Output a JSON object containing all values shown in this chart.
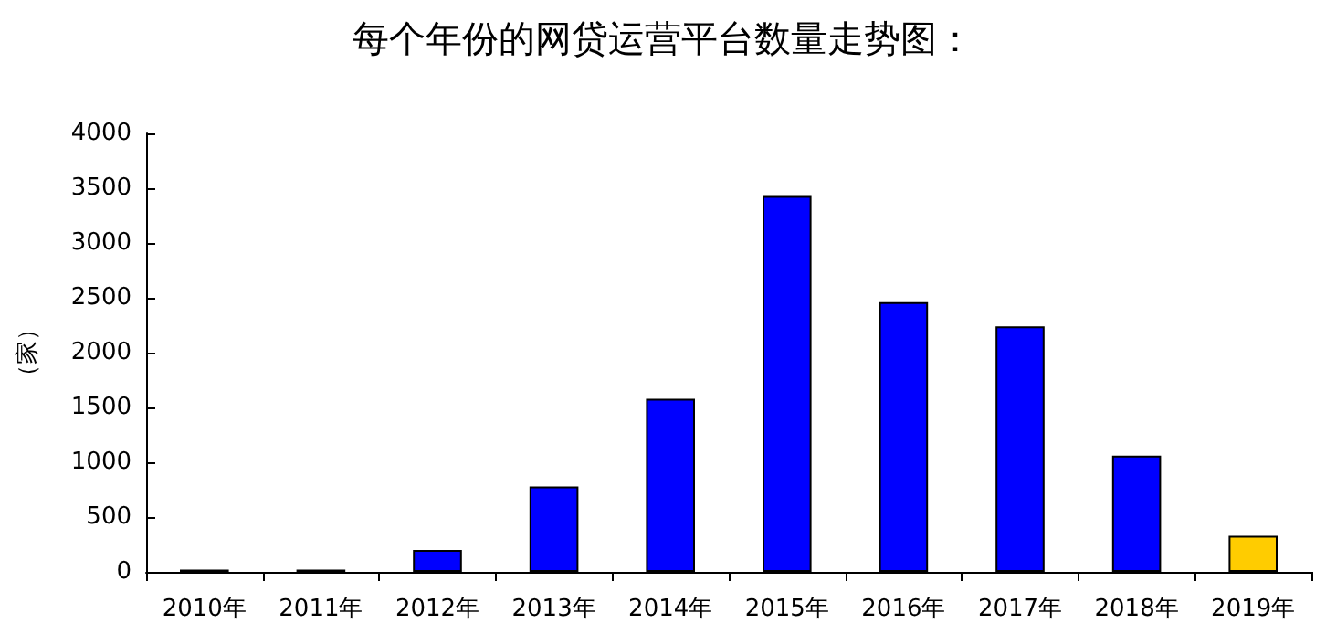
{
  "chart_data": {
    "type": "bar",
    "title": "每个年份的网贷运营平台数量走势图：",
    "ylabel": "（家）",
    "categories": [
      "2010年",
      "2011年",
      "2012年",
      "2013年",
      "2014年",
      "2015年",
      "2016年",
      "2017年",
      "2018年",
      "2019年"
    ],
    "values": [
      20,
      20,
      200,
      780,
      1580,
      3430,
      2460,
      2240,
      1060,
      330
    ],
    "colors": [
      "#0000ff",
      "#0000ff",
      "#0000ff",
      "#0000ff",
      "#0000ff",
      "#0000ff",
      "#0000ff",
      "#0000ff",
      "#0000ff",
      "#ffcc00"
    ],
    "ylim": [
      0,
      4000
    ],
    "yticks": [
      0,
      500,
      1000,
      1500,
      2000,
      2500,
      3000,
      3500,
      4000
    ],
    "grid": false
  }
}
